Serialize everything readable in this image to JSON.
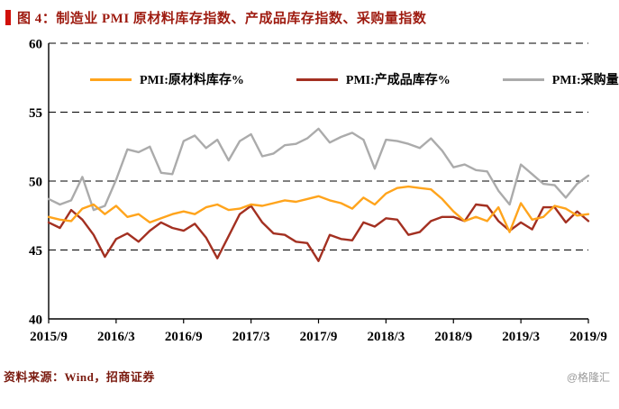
{
  "title": "图 4：制造业 PMI 原材料库存指数、产成品库存指数、采购量指数",
  "footer": {
    "source": "资料来源：Wind，招商证券",
    "watermark": "@格隆汇"
  },
  "colors": {
    "title_red": "#9e1b10",
    "accent_bar_red": "#d1100a",
    "source_text": "#7a1a0f",
    "watermark_gray": "#9a9a9a"
  },
  "chart_data": {
    "type": "line",
    "title": "制造业PMI原材料库存指数、产成品库存指数、采购量指数",
    "ylim": [
      40,
      60
    ],
    "yticks": [
      40,
      45,
      50,
      55,
      60
    ],
    "grid": "horizontal dashed black lines at 45/50/55/60",
    "legend_position": "top inside plot",
    "x_tick_every": 6,
    "x_tick_labels": [
      "2015/9",
      "2016/3",
      "2016/9",
      "2017/3",
      "2017/9",
      "2018/3",
      "2018/9",
      "2019/3",
      "2019/9"
    ],
    "x_labels": [
      "2015/9",
      "2015/10",
      "2015/11",
      "2015/12",
      "2016/1",
      "2016/2",
      "2016/3",
      "2016/4",
      "2016/5",
      "2016/6",
      "2016/7",
      "2016/8",
      "2016/9",
      "2016/10",
      "2016/11",
      "2016/12",
      "2017/1",
      "2017/2",
      "2017/3",
      "2017/4",
      "2017/5",
      "2017/6",
      "2017/7",
      "2017/8",
      "2017/9",
      "2017/10",
      "2017/11",
      "2017/12",
      "2018/1",
      "2018/2",
      "2018/3",
      "2018/4",
      "2018/5",
      "2018/6",
      "2018/7",
      "2018/8",
      "2018/9",
      "2018/10",
      "2018/11",
      "2018/12",
      "2019/1",
      "2019/2",
      "2019/3",
      "2019/4",
      "2019/5",
      "2019/6",
      "2019/7",
      "2019/8",
      "2019/9"
    ],
    "series": [
      {
        "name": "PMI:原材料库存%",
        "color": "#ffa41c",
        "values": [
          47.4,
          47.2,
          47.1,
          48.0,
          48.3,
          47.6,
          48.2,
          47.4,
          47.6,
          47.0,
          47.3,
          47.6,
          47.8,
          47.6,
          48.1,
          48.3,
          47.9,
          48.0,
          48.3,
          48.2,
          48.4,
          48.6,
          48.5,
          48.7,
          48.9,
          48.6,
          48.4,
          48.0,
          48.8,
          48.3,
          49.1,
          49.5,
          49.6,
          49.5,
          49.4,
          48.7,
          47.8,
          47.1,
          47.4,
          47.1,
          48.1,
          46.3,
          48.4,
          47.2,
          47.4,
          48.2,
          48.0,
          47.5,
          47.6
        ]
      },
      {
        "name": "PMI:产成品库存%",
        "color": "#a33021",
        "values": [
          47.0,
          46.6,
          47.9,
          47.2,
          46.1,
          44.5,
          45.8,
          46.2,
          45.6,
          46.4,
          47.0,
          46.6,
          46.4,
          46.9,
          45.9,
          44.4,
          46.0,
          47.6,
          48.2,
          47.0,
          46.2,
          46.1,
          45.6,
          45.5,
          44.2,
          46.1,
          45.8,
          45.7,
          47.0,
          46.7,
          47.3,
          47.2,
          46.1,
          46.3,
          47.1,
          47.4,
          47.4,
          47.1,
          48.3,
          48.2,
          47.1,
          46.4,
          47.0,
          46.5,
          48.1,
          48.1,
          47.0,
          47.8,
          47.1
        ]
      },
      {
        "name": "PMI:采购量",
        "color": "#ababab",
        "values": [
          48.7,
          48.3,
          48.6,
          50.3,
          47.9,
          48.2,
          50.1,
          52.3,
          52.1,
          52.5,
          50.6,
          50.5,
          52.9,
          53.3,
          52.4,
          53.0,
          51.5,
          52.9,
          53.4,
          51.8,
          52.0,
          52.6,
          52.7,
          53.1,
          53.8,
          52.8,
          53.2,
          53.5,
          53.0,
          50.9,
          53.0,
          52.9,
          52.7,
          52.4,
          53.1,
          52.2,
          51.0,
          51.2,
          50.8,
          50.7,
          49.3,
          48.3,
          51.2,
          50.5,
          49.8,
          49.7,
          48.8,
          49.8,
          50.4
        ]
      }
    ]
  }
}
